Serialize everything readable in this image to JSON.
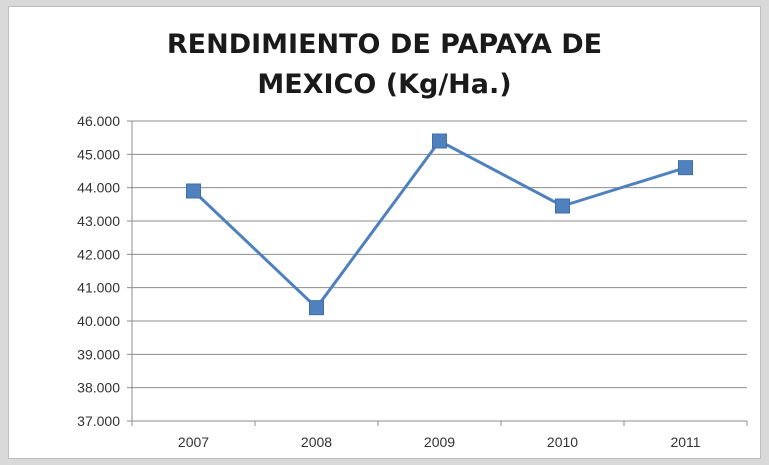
{
  "chart_data": {
    "type": "line",
    "title_lines": [
      "RENDIMIENTO DE PAPAYA DE",
      "MEXICO (Kg/Ha.)"
    ],
    "categories": [
      "2007",
      "2008",
      "2009",
      "2010",
      "2011"
    ],
    "series": [
      {
        "values": [
          43900,
          40400,
          45400,
          43450,
          44600
        ]
      }
    ],
    "ylim": [
      37000,
      46000
    ],
    "yticks": [
      37000,
      38000,
      39000,
      40000,
      41000,
      42000,
      43000,
      44000,
      45000,
      46000
    ],
    "ytick_labels": [
      "37.000",
      "38.000",
      "39.000",
      "40.000",
      "41.000",
      "42.000",
      "43.000",
      "44.000",
      "45.000",
      "46.000"
    ],
    "xlabel": "",
    "ylabel": "",
    "grid": true,
    "legend": "none",
    "colors": {
      "line": "#4f81bd",
      "marker": "#4f81bd",
      "grid": "#8c8c8c",
      "axis": "#8c8c8c"
    }
  }
}
